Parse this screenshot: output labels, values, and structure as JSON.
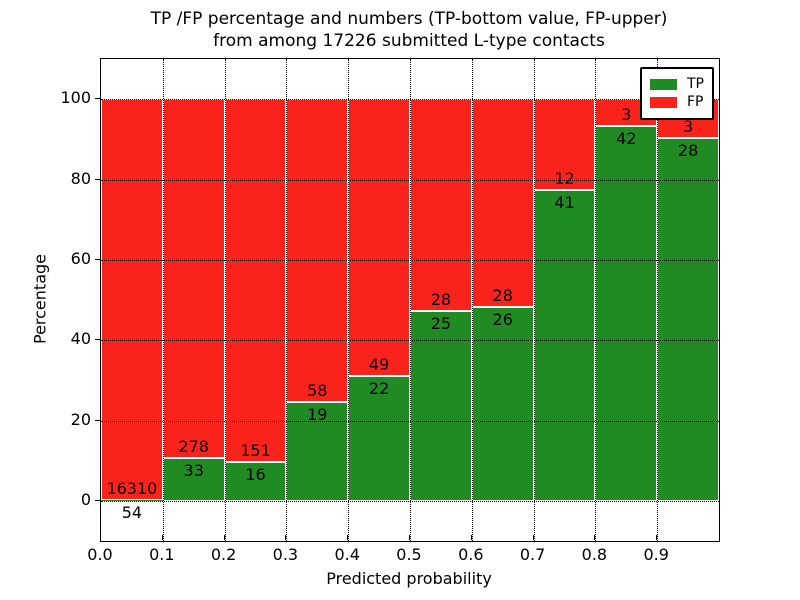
{
  "title": {
    "line1": "TP /FP percentage and numbers (TP-bottom value, FP-upper)",
    "line2": "from among 17226 submitted L-type contacts"
  },
  "axes": {
    "xlabel": "Predicted probability",
    "ylabel": "Percentage",
    "x_ticks": [
      "0.0",
      "0.1",
      "0.2",
      "0.3",
      "0.4",
      "0.5",
      "0.6",
      "0.7",
      "0.8",
      "0.9"
    ],
    "y_ticks": [
      0,
      20,
      40,
      60,
      80,
      100
    ]
  },
  "legend": {
    "items": [
      {
        "label": "TP",
        "color": "#208b22"
      },
      {
        "label": "FP",
        "color": "#fa231c"
      }
    ]
  },
  "colors": {
    "tp_green": "#208b22",
    "fp_red": "#fa231c",
    "grid": "#000000",
    "background": "#ffffff"
  },
  "chart_data": {
    "type": "bar",
    "stacked": true,
    "normalized_to_percent": true,
    "title": "TP /FP percentage and numbers (TP-bottom value, FP-upper) from among 17226 submitted L-type contacts",
    "xlabel": "Predicted probability",
    "ylabel": "Percentage",
    "categories": [
      "0.0-0.1",
      "0.1-0.2",
      "0.2-0.3",
      "0.3-0.4",
      "0.4-0.5",
      "0.5-0.6",
      "0.6-0.7",
      "0.7-0.8",
      "0.8-0.9",
      "0.9-1.0"
    ],
    "series": [
      {
        "name": "TP",
        "color": "#208b22",
        "values": [
          54,
          33,
          16,
          19,
          22,
          25,
          26,
          41,
          42,
          28
        ]
      },
      {
        "name": "FP",
        "color": "#fa231c",
        "values": [
          16310,
          278,
          151,
          58,
          49,
          28,
          28,
          12,
          3,
          3
        ]
      }
    ],
    "tp_percent_of_bin": [
      0.33,
      10.61,
      9.58,
      24.68,
      30.99,
      47.17,
      48.15,
      77.36,
      93.33,
      90.32
    ],
    "total_contacts": 17226,
    "xlim": [
      0.0,
      1.0
    ],
    "ylim": [
      -10,
      110
    ],
    "bar_width": 0.1,
    "grid": "dotted black",
    "legend_position": "upper right"
  }
}
